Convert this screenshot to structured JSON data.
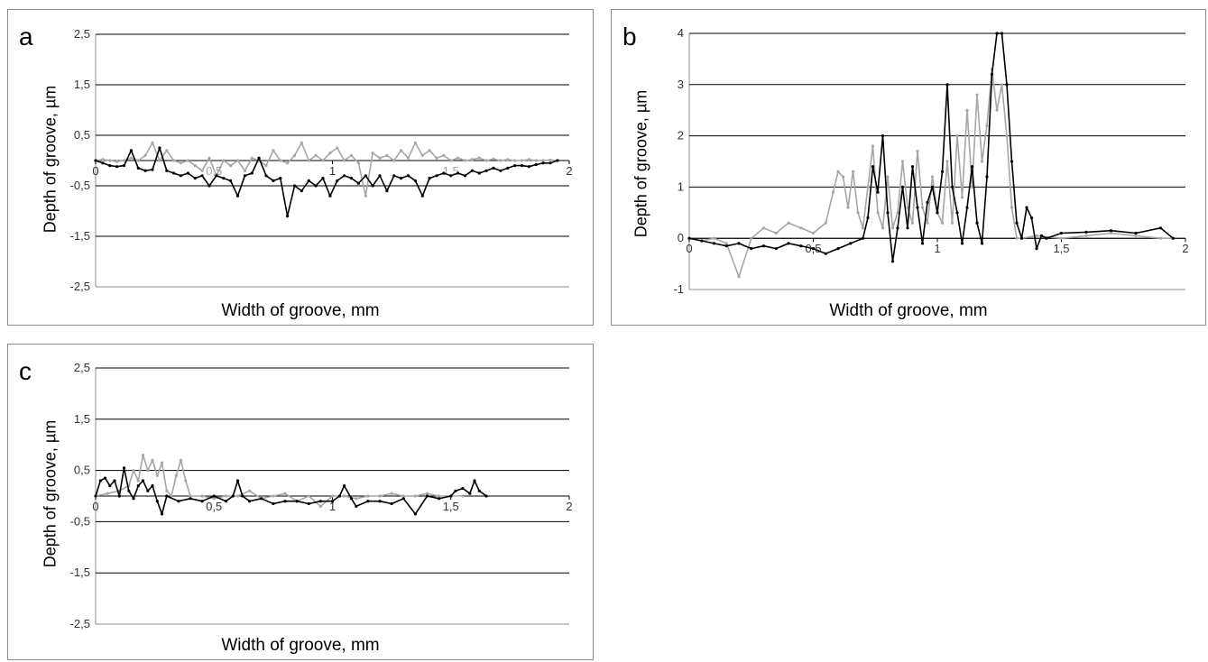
{
  "colors": {
    "series_dark": "#000000",
    "series_light": "#a6a6a6",
    "grid": "#000000",
    "frame": "#8c8c8c"
  },
  "chart_data": [
    {
      "panel_label": "a",
      "type": "line",
      "xlabel": "Width of groove, mm",
      "ylabel": "Depth of groove, µm",
      "xlim": [
        0,
        2
      ],
      "ylim": [
        -2.5,
        2.5
      ],
      "yticks": [
        2.5,
        1.5,
        0.5,
        -0.5,
        -1.5,
        -2.5
      ],
      "ytick_labels": [
        "2,5",
        "1,5",
        "0,5",
        "-0,5",
        "-1,5",
        "-2,5"
      ],
      "xticks": [
        0,
        1,
        2
      ],
      "xtick_labels": [
        "0",
        "1",
        "2"
      ],
      "xtick_hidden_labels": [
        {
          "v": 0.5,
          "t": "0,5"
        },
        {
          "v": 1.5,
          "t": "1,5"
        }
      ],
      "grid": true,
      "series": [
        {
          "color": "dark",
          "x": [
            0,
            0.03,
            0.06,
            0.09,
            0.12,
            0.15,
            0.18,
            0.21,
            0.24,
            0.27,
            0.3,
            0.33,
            0.36,
            0.39,
            0.42,
            0.45,
            0.48,
            0.51,
            0.54,
            0.57,
            0.6,
            0.63,
            0.66,
            0.69,
            0.72,
            0.75,
            0.78,
            0.81,
            0.84,
            0.87,
            0.9,
            0.93,
            0.96,
            0.99,
            1.02,
            1.05,
            1.08,
            1.11,
            1.14,
            1.17,
            1.2,
            1.23,
            1.26,
            1.29,
            1.32,
            1.35,
            1.38,
            1.41,
            1.44,
            1.47,
            1.5,
            1.53,
            1.56,
            1.59,
            1.62,
            1.65,
            1.68,
            1.71,
            1.74,
            1.77,
            1.8,
            1.83,
            1.86,
            1.89,
            1.92,
            1.95
          ],
          "y": [
            0,
            -0.05,
            -0.1,
            -0.12,
            -0.1,
            0.2,
            -0.15,
            -0.2,
            -0.18,
            0.25,
            -0.2,
            -0.25,
            -0.3,
            -0.25,
            -0.35,
            -0.3,
            -0.5,
            -0.3,
            -0.35,
            -0.4,
            -0.7,
            -0.3,
            -0.25,
            0.05,
            -0.3,
            -0.4,
            -0.35,
            -1.1,
            -0.5,
            -0.6,
            -0.4,
            -0.5,
            -0.35,
            -0.7,
            -0.4,
            -0.3,
            -0.35,
            -0.45,
            -0.3,
            -0.5,
            -0.3,
            -0.6,
            -0.3,
            -0.35,
            -0.3,
            -0.4,
            -0.7,
            -0.35,
            -0.3,
            -0.25,
            -0.3,
            -0.25,
            -0.3,
            -0.2,
            -0.25,
            -0.2,
            -0.15,
            -0.2,
            -0.15,
            -0.1,
            -0.1,
            -0.12,
            -0.08,
            -0.05,
            -0.05,
            0
          ]
        },
        {
          "color": "light",
          "x": [
            0,
            0.03,
            0.06,
            0.09,
            0.12,
            0.15,
            0.18,
            0.21,
            0.24,
            0.27,
            0.3,
            0.33,
            0.36,
            0.39,
            0.42,
            0.45,
            0.48,
            0.51,
            0.54,
            0.57,
            0.6,
            0.63,
            0.66,
            0.69,
            0.72,
            0.75,
            0.78,
            0.81,
            0.84,
            0.87,
            0.9,
            0.93,
            0.96,
            0.99,
            1.02,
            1.05,
            1.08,
            1.11,
            1.14,
            1.17,
            1.2,
            1.23,
            1.26,
            1.29,
            1.32,
            1.35,
            1.38,
            1.41,
            1.44,
            1.47,
            1.5,
            1.53,
            1.56,
            1.59,
            1.62,
            1.65,
            1.68,
            1.71,
            1.74,
            1.77,
            1.8,
            1.83,
            1.86,
            1.89,
            1.92,
            1.95
          ],
          "y": [
            0,
            0.02,
            0,
            -0.02,
            0,
            0.05,
            0,
            0.1,
            0.35,
            0,
            0.2,
            0,
            -0.05,
            0,
            -0.1,
            -0.2,
            0.05,
            -0.3,
            0,
            -0.1,
            0,
            -0.2,
            0.05,
            0,
            -0.1,
            0.2,
            0,
            -0.05,
            0.1,
            0.35,
            0,
            0.1,
            0,
            0.15,
            0.25,
            0,
            0.1,
            -0.05,
            -0.7,
            0.15,
            0.05,
            0.1,
            0,
            0.2,
            0.05,
            0.35,
            0.1,
            0.2,
            0.05,
            0.1,
            0,
            0.05,
            0,
            0.02,
            0.05,
            0,
            0.03,
            0,
            0.02,
            0,
            0,
            0.02,
            0,
            0,
            0.01,
            0
          ]
        }
      ]
    },
    {
      "panel_label": "b",
      "type": "line",
      "xlabel": "Width of groove, mm",
      "ylabel": "Depth of groove, µm",
      "xlim": [
        0,
        2
      ],
      "ylim": [
        -1,
        4
      ],
      "yticks": [
        4,
        3,
        2,
        1,
        0,
        -1
      ],
      "ytick_labels": [
        "4",
        "3",
        "2",
        "1",
        "0",
        "-1"
      ],
      "xticks": [
        0,
        0.5,
        1,
        1.5,
        2
      ],
      "xtick_labels": [
        "0",
        "0,5",
        "1",
        "1,5",
        "2"
      ],
      "grid": true,
      "series": [
        {
          "color": "dark",
          "x": [
            0,
            0.05,
            0.1,
            0.15,
            0.2,
            0.25,
            0.3,
            0.35,
            0.4,
            0.45,
            0.5,
            0.55,
            0.6,
            0.65,
            0.7,
            0.72,
            0.74,
            0.76,
            0.78,
            0.8,
            0.82,
            0.84,
            0.86,
            0.88,
            0.9,
            0.92,
            0.94,
            0.96,
            0.98,
            1.0,
            1.02,
            1.04,
            1.06,
            1.08,
            1.1,
            1.12,
            1.14,
            1.16,
            1.18,
            1.2,
            1.22,
            1.24,
            1.26,
            1.28,
            1.3,
            1.32,
            1.34,
            1.36,
            1.38,
            1.4,
            1.42,
            1.44,
            1.5,
            1.6,
            1.7,
            1.8,
            1.9,
            1.95
          ],
          "y": [
            0,
            -0.05,
            -0.1,
            -0.15,
            -0.1,
            -0.2,
            -0.15,
            -0.2,
            -0.1,
            -0.15,
            -0.2,
            -0.3,
            -0.2,
            -0.1,
            0,
            0.4,
            1.4,
            0.9,
            2.0,
            0.5,
            -0.45,
            0.2,
            1.0,
            0.2,
            1.4,
            0.6,
            -0.1,
            0.7,
            1.0,
            0.5,
            1.3,
            3.0,
            1.0,
            0.5,
            -0.1,
            0.6,
            1.4,
            0.3,
            -0.1,
            1.2,
            3.2,
            4.0,
            4.0,
            3.0,
            1.5,
            0.3,
            0,
            0.6,
            0.4,
            -0.2,
            0.05,
            0,
            0.1,
            0.12,
            0.15,
            0.1,
            0.2,
            0
          ]
        },
        {
          "color": "light",
          "x": [
            0,
            0.05,
            0.1,
            0.15,
            0.2,
            0.25,
            0.3,
            0.35,
            0.4,
            0.45,
            0.5,
            0.55,
            0.58,
            0.6,
            0.62,
            0.64,
            0.66,
            0.68,
            0.7,
            0.72,
            0.74,
            0.76,
            0.78,
            0.8,
            0.82,
            0.84,
            0.86,
            0.88,
            0.9,
            0.92,
            0.94,
            0.96,
            0.98,
            1.0,
            1.02,
            1.04,
            1.06,
            1.08,
            1.1,
            1.12,
            1.14,
            1.16,
            1.18,
            1.2,
            1.22,
            1.24,
            1.26,
            1.28,
            1.3,
            1.32,
            1.34,
            1.4,
            1.5,
            1.6,
            1.7,
            1.8,
            1.9,
            1.95
          ],
          "y": [
            0,
            -0.05,
            0,
            -0.1,
            -0.75,
            0,
            0.2,
            0.1,
            0.3,
            0.2,
            0.1,
            0.3,
            0.9,
            1.3,
            1.2,
            0.6,
            1.3,
            0.5,
            0.2,
            1.0,
            1.8,
            0.5,
            0.2,
            1.2,
            0.2,
            0.5,
            1.5,
            0.6,
            0.3,
            1.7,
            0.6,
            0.3,
            1.2,
            0.5,
            0.3,
            1.5,
            0.3,
            2.0,
            0.8,
            2.5,
            1.0,
            2.8,
            1.5,
            2.2,
            3.3,
            2.5,
            3.0,
            2.0,
            0.6,
            0,
            0,
            0.05,
            0,
            0.05,
            0.1,
            0.05,
            0,
            0
          ]
        }
      ]
    },
    {
      "panel_label": "c",
      "type": "line",
      "xlabel": "Width of groove, mm",
      "ylabel": "Depth of groove, µm",
      "xlim": [
        0,
        2
      ],
      "ylim": [
        -2.5,
        2.5
      ],
      "yticks": [
        2.5,
        1.5,
        0.5,
        -0.5,
        -1.5,
        -2.5
      ],
      "ytick_labels": [
        "2,5",
        "1,5",
        "0,5",
        "-0,5",
        "-1,5",
        "-2,5"
      ],
      "xticks": [
        0,
        0.5,
        1,
        1.5,
        2
      ],
      "xtick_labels": [
        "0",
        "0,5",
        "1",
        "1,5",
        "2"
      ],
      "grid": true,
      "series": [
        {
          "color": "dark",
          "x": [
            0,
            0.02,
            0.04,
            0.06,
            0.08,
            0.1,
            0.12,
            0.14,
            0.16,
            0.18,
            0.2,
            0.22,
            0.24,
            0.26,
            0.28,
            0.3,
            0.35,
            0.4,
            0.45,
            0.5,
            0.55,
            0.58,
            0.6,
            0.62,
            0.65,
            0.7,
            0.75,
            0.8,
            0.85,
            0.9,
            0.95,
            1.0,
            1.03,
            1.05,
            1.08,
            1.1,
            1.15,
            1.2,
            1.25,
            1.3,
            1.35,
            1.4,
            1.45,
            1.5,
            1.52,
            1.55,
            1.58,
            1.6,
            1.62,
            1.65
          ],
          "y": [
            0,
            0.3,
            0.35,
            0.2,
            0.3,
            0,
            0.55,
            0.1,
            -0.05,
            0.2,
            0.3,
            0.1,
            0.2,
            -0.1,
            -0.35,
            0,
            -0.1,
            -0.05,
            -0.1,
            0,
            -0.1,
            0,
            0.3,
            0,
            -0.1,
            -0.05,
            -0.15,
            -0.1,
            -0.1,
            -0.15,
            -0.1,
            -0.1,
            0,
            0.2,
            -0.05,
            -0.2,
            -0.1,
            -0.1,
            -0.15,
            -0.05,
            -0.35,
            0,
            -0.05,
            0,
            0.1,
            0.15,
            0.05,
            0.3,
            0.1,
            0
          ]
        },
        {
          "color": "light",
          "x": [
            0,
            0.05,
            0.1,
            0.14,
            0.16,
            0.18,
            0.2,
            0.22,
            0.24,
            0.26,
            0.28,
            0.3,
            0.32,
            0.34,
            0.36,
            0.38,
            0.4,
            0.45,
            0.5,
            0.55,
            0.6,
            0.65,
            0.7,
            0.75,
            0.8,
            0.85,
            0.9,
            0.95,
            1.0,
            1.05,
            1.1,
            1.15,
            1.2,
            1.25,
            1.3,
            1.35,
            1.4,
            1.45,
            1.5,
            1.55
          ],
          "y": [
            0,
            0.05,
            0.1,
            0.2,
            0.5,
            0.3,
            0.8,
            0.5,
            0.7,
            0.4,
            0.65,
            0.1,
            0,
            0.4,
            0.7,
            0.3,
            0,
            0,
            -0.05,
            0,
            0,
            0.1,
            -0.05,
            0,
            0.05,
            -0.1,
            0,
            -0.2,
            0,
            0,
            -0.05,
            0,
            0,
            0.05,
            0,
            0,
            0.05,
            0,
            0,
            0
          ]
        }
      ]
    }
  ]
}
